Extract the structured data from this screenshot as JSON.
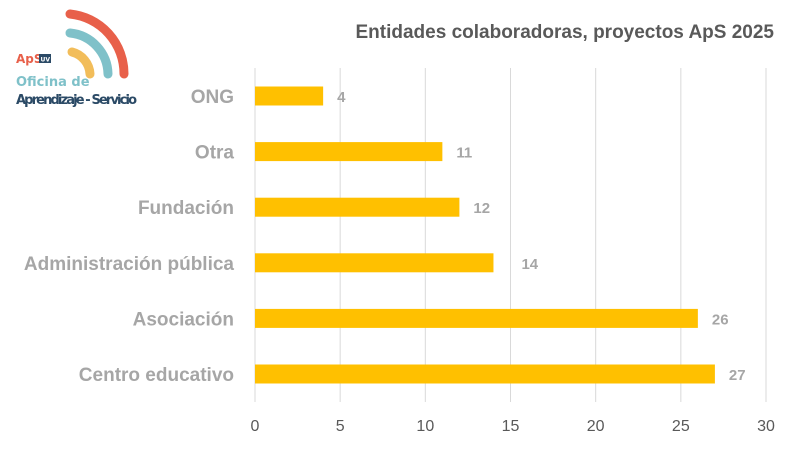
{
  "logo": {
    "text_top": "ApS",
    "badge": "UV",
    "line1": "Oficina de",
    "line2": "Aprendizaje - Servicio"
  },
  "chart_data": {
    "type": "bar",
    "orientation": "horizontal",
    "title": "Entidades colaboradoras, proyectos ApS 2025",
    "categories": [
      "ONG",
      "Otra",
      "Fundación",
      "Administración pública",
      "Asociación",
      "Centro educativo"
    ],
    "values": [
      4,
      11,
      12,
      14,
      26,
      27
    ],
    "xlim": [
      0,
      30
    ],
    "xticks": [
      0,
      5,
      10,
      15,
      20,
      25,
      30
    ],
    "grid": true,
    "bar_color": "#ffc000",
    "xlabel": "",
    "ylabel": ""
  }
}
